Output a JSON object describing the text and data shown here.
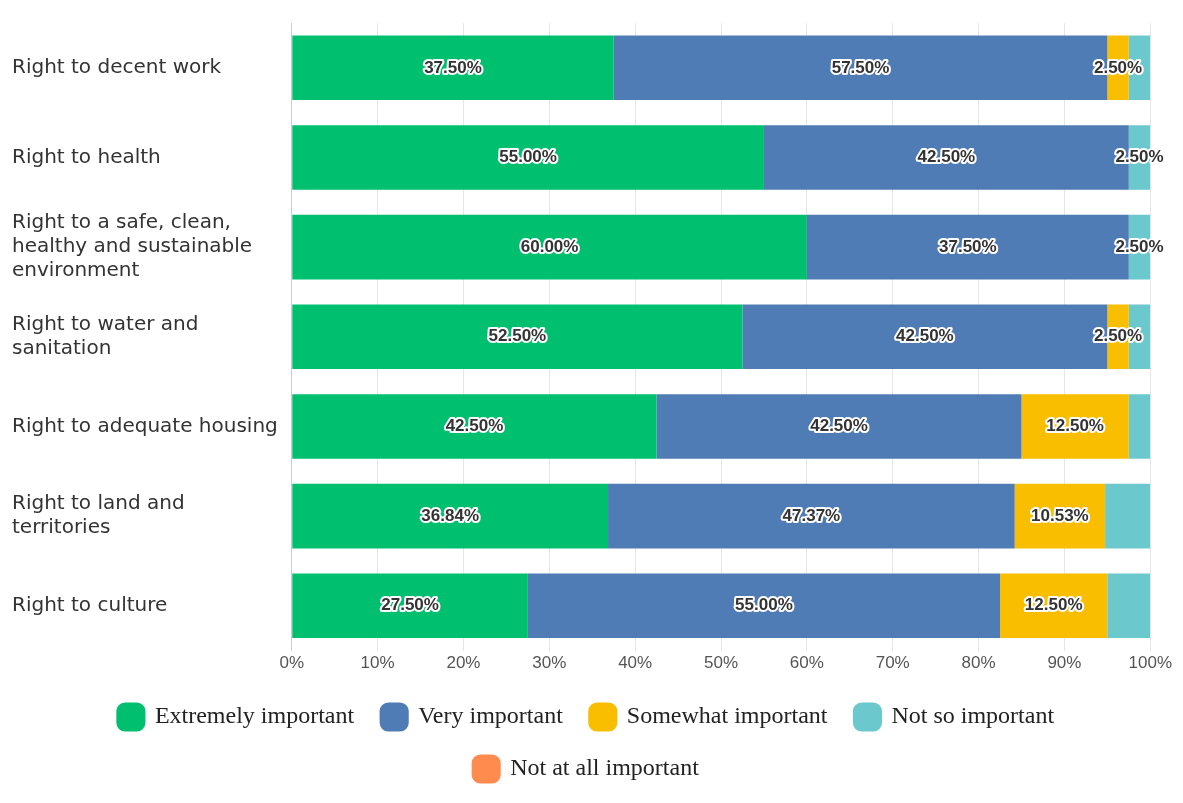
{
  "chart_data": {
    "type": "bar",
    "orientation": "horizontal",
    "stacked": true,
    "categories": [
      "Right to decent work",
      "Right to health",
      "Right to a safe, clean, healthy and sustainable environment",
      "Right to water and sanitation",
      "Right to adequate housing",
      "Right to land and territories",
      "Right to culture"
    ],
    "series": [
      {
        "name": "Extremely important",
        "color": "#00bf6f",
        "values": [
          37.5,
          55,
          60,
          52.5,
          42.5,
          36.84,
          27.5
        ],
        "value_labels": [
          "37.50%",
          "55.00%",
          "60.00%",
          "52.50%",
          "42.50%",
          "36.84%",
          "27.50%"
        ]
      },
      {
        "name": "Very important",
        "color": "#507cb6",
        "values": [
          57.5,
          42.5,
          37.5,
          42.5,
          42.5,
          47.37,
          55
        ],
        "value_labels": [
          "57.50%",
          "42.50%",
          "37.50%",
          "42.50%",
          "42.50%",
          "47.37%",
          "55.00%"
        ]
      },
      {
        "name": "Somewhat important",
        "color": "#f9be00",
        "values": [
          2.5,
          0,
          0,
          2.5,
          12.5,
          10.53,
          12.5
        ],
        "value_labels": [
          "2.50%",
          null,
          null,
          "2.50%",
          "12.50%",
          "10.53%",
          "12.50%"
        ]
      },
      {
        "name": "Not so important",
        "color": "#6bc8cd",
        "values": [
          2.5,
          2.5,
          2.5,
          2.5,
          2.5,
          5.26,
          5
        ],
        "value_labels": [
          null,
          "2.50%",
          "2.50%",
          null,
          null,
          null,
          null
        ]
      },
      {
        "name": "Not at all important",
        "color": "#ff8b4f",
        "values": [
          0,
          0,
          0,
          0,
          0,
          0,
          0
        ]
      }
    ],
    "xlim": [
      0,
      100
    ],
    "xticks": [
      {
        "value": 0,
        "label": "0%"
      },
      {
        "value": 10,
        "label": "10%"
      },
      {
        "value": 20,
        "label": "20%"
      },
      {
        "value": 30,
        "label": "30%"
      },
      {
        "value": 40,
        "label": "40%"
      },
      {
        "value": 50,
        "label": "50%"
      },
      {
        "value": 60,
        "label": "60%"
      },
      {
        "value": 70,
        "label": "70%"
      },
      {
        "value": 80,
        "label": "80%"
      },
      {
        "value": 90,
        "label": "90%"
      },
      {
        "value": 100,
        "label": "100%"
      }
    ],
    "grid": "x",
    "legend": "bottom"
  }
}
